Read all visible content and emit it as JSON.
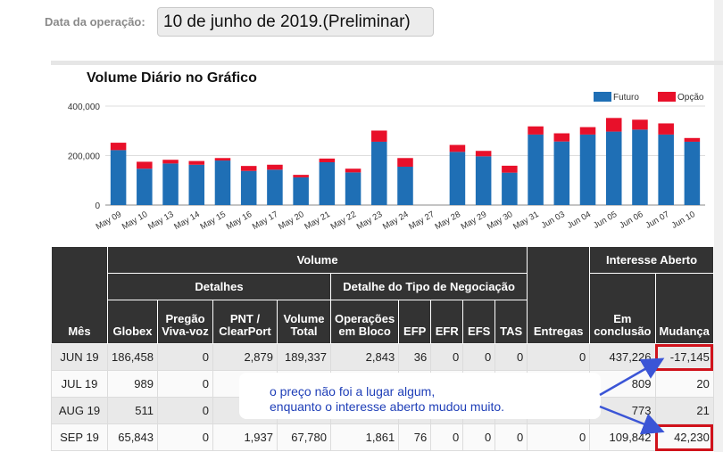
{
  "operation": {
    "label": "Data da operação:",
    "value": "10 de junho de 2019.(Preliminar)"
  },
  "chart_data": {
    "type": "bar",
    "stacked": true,
    "title": "Volume Diário no Gráfico",
    "categories": [
      "May 09",
      "May 10",
      "May 13",
      "May 14",
      "May 15",
      "May 16",
      "May 17",
      "May 20",
      "May 21",
      "May 22",
      "May 23",
      "May 24",
      "May 27",
      "May 28",
      "May 29",
      "May 30",
      "May 31",
      "Jun 03",
      "Jun 04",
      "Jun 05",
      "Jun 06",
      "Jun 07",
      "Jun 10"
    ],
    "series": [
      {
        "name": "Futuro",
        "color": "#1f6fb5",
        "values": [
          222000,
          147000,
          168000,
          163000,
          180000,
          138000,
          143000,
          112000,
          173000,
          132000,
          256000,
          155000,
          0,
          215000,
          197000,
          131000,
          285000,
          257000,
          285000,
          297000,
          305000,
          285000,
          256000
        ]
      },
      {
        "name": "Opção",
        "color": "#e8102a",
        "values": [
          30000,
          28000,
          15000,
          15000,
          10000,
          20000,
          20000,
          10000,
          15000,
          15000,
          45000,
          35000,
          0,
          28000,
          22000,
          28000,
          33000,
          33000,
          30000,
          55000,
          40000,
          45000,
          15000
        ]
      }
    ],
    "y_ticks": [
      "0",
      "200,000",
      "400,000"
    ],
    "ylim": [
      0,
      400000
    ],
    "legend_position": "top-right",
    "grid": true
  },
  "table": {
    "groups": {
      "volume": "Volume",
      "interesse": "Interesse Aberto",
      "detalhes": "Detalhes",
      "tipo": "Detalhe do Tipo de Negociação"
    },
    "headers": {
      "mes": "Mês",
      "globex": "Globex",
      "pregao": "Pregão Viva-voz",
      "pnt": "PNT / ClearPort",
      "volume_total": "Volume Total",
      "operacoes": "Operações em Bloco",
      "efp": "EFP",
      "efr": "EFR",
      "efs": "EFS",
      "tas": "TAS",
      "entregas": "Entregas",
      "em_conclusao": "Em conclusão",
      "mudanca": "Mudança"
    },
    "rows": [
      {
        "mes": "JUN 19",
        "globex": "186,458",
        "pregao": "0",
        "pnt": "2,879",
        "volume_total": "189,337",
        "operacoes": "2,843",
        "efp": "36",
        "efr": "0",
        "efs": "0",
        "tas": "0",
        "entregas": "0",
        "em_conclusao": "437,226",
        "mudanca": "-17,145"
      },
      {
        "mes": "JUL 19",
        "globex": "989",
        "pregao": "0",
        "pnt": "",
        "volume_total": "",
        "operacoes": "",
        "efp": "",
        "efr": "",
        "efs": "",
        "tas": "",
        "entregas": "",
        "em_conclusao": "809",
        "mudanca": "20"
      },
      {
        "mes": "AUG 19",
        "globex": "511",
        "pregao": "0",
        "pnt": "",
        "volume_total": "",
        "operacoes": "",
        "efp": "",
        "efr": "",
        "efs": "",
        "tas": "",
        "entregas": "",
        "em_conclusao": "773",
        "mudanca": "21"
      },
      {
        "mes": "SEP 19",
        "globex": "65,843",
        "pregao": "0",
        "pnt": "1,937",
        "volume_total": "67,780",
        "operacoes": "1,861",
        "efp": "76",
        "efr": "0",
        "efs": "0",
        "tas": "0",
        "entregas": "0",
        "em_conclusao": "109,842",
        "mudanca": "42,230"
      }
    ]
  },
  "annotation": {
    "line1": "o preço não foi a lugar algum,",
    "line2": "enquanto o interesse aberto mudou muito.",
    "color": "#1f3fb8"
  }
}
